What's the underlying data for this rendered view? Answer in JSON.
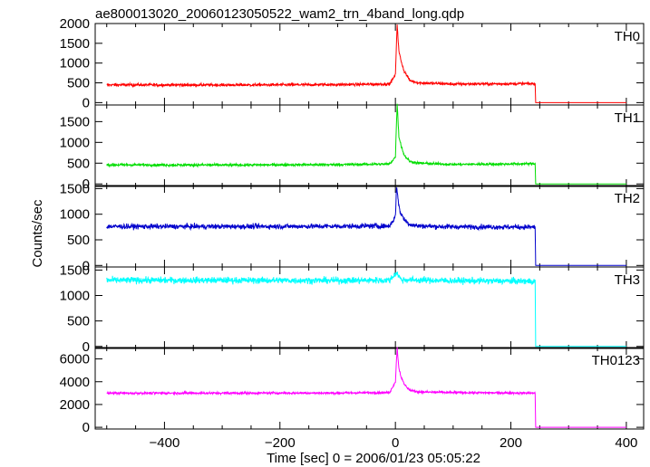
{
  "title": "ae800013020_20060123050522_wam2_trn_4band_long.qdp",
  "ylabel": "Counts/sec",
  "xlabel": "Time [sec] 0 = 2006/01/23 05:05:22",
  "chart_data": {
    "type": "line",
    "title": "ae800013020_20060123050522_wam2_trn_4band_long.qdp",
    "xlabel": "Time [sec] 0 = 2006/01/23 05:05:22",
    "ylabel": "Counts/sec",
    "xlim": [
      -520,
      430
    ],
    "x_ticks": [
      -400,
      -200,
      0,
      200,
      400
    ],
    "grid": false,
    "layout": "5 vertically stacked panels sharing the x axis",
    "event": {
      "onset_x": 0,
      "data_end_x": 242,
      "data_start_x": -500,
      "data_stop_x": 400
    },
    "panels": [
      {
        "name": "TH0",
        "color": "#ff0000",
        "ylim": [
          -60,
          2000
        ],
        "y_ticks": [
          0,
          500,
          1000,
          1500,
          2000
        ],
        "series": [
          {
            "name": "TH0",
            "baseline": 450,
            "noise": 25,
            "peak": 2000,
            "peak_x": 3,
            "secondary_peak": 1050,
            "secondary_x": 10,
            "after_end": 0,
            "points": [
              [
                -500,
                450
              ],
              [
                -300,
                445
              ],
              [
                -100,
                455
              ],
              [
                -10,
                470
              ],
              [
                0,
                700
              ],
              [
                3,
                2000
              ],
              [
                6,
                1300
              ],
              [
                10,
                1050
              ],
              [
                15,
                800
              ],
              [
                25,
                560
              ],
              [
                40,
                500
              ],
              [
                100,
                470
              ],
              [
                242,
                480
              ],
              [
                243,
                0
              ],
              [
                400,
                0
              ]
            ]
          }
        ]
      },
      {
        "name": "TH1",
        "color": "#00dd00",
        "ylim": [
          -60,
          1900
        ],
        "y_ticks": [
          0,
          500,
          1000,
          1500
        ],
        "series": [
          {
            "name": "TH1",
            "baseline": 460,
            "noise": 22,
            "peak": 1950,
            "peak_x": 3,
            "secondary_peak": 920,
            "secondary_x": 10,
            "after_end": 0,
            "points": [
              [
                -500,
                460
              ],
              [
                -300,
                455
              ],
              [
                -100,
                465
              ],
              [
                -10,
                480
              ],
              [
                0,
                650
              ],
              [
                3,
                1950
              ],
              [
                6,
                1150
              ],
              [
                10,
                920
              ],
              [
                15,
                700
              ],
              [
                25,
                540
              ],
              [
                40,
                500
              ],
              [
                100,
                470
              ],
              [
                242,
                485
              ],
              [
                243,
                0
              ],
              [
                400,
                0
              ]
            ]
          }
        ]
      },
      {
        "name": "TH2",
        "color": "#0000cc",
        "ylim": [
          -30,
          1560
        ],
        "y_ticks": [
          0,
          500,
          1000,
          1500
        ],
        "series": [
          {
            "name": "TH2",
            "baseline": 760,
            "noise": 35,
            "peak": 1560,
            "peak_x": 2,
            "secondary_peak": 1050,
            "secondary_x": 8,
            "after_end": 0,
            "points": [
              [
                -500,
                760
              ],
              [
                -300,
                760
              ],
              [
                -100,
                765
              ],
              [
                -10,
                770
              ],
              [
                0,
                950
              ],
              [
                2,
                1560
              ],
              [
                5,
                1250
              ],
              [
                8,
                1050
              ],
              [
                15,
                900
              ],
              [
                25,
                800
              ],
              [
                40,
                770
              ],
              [
                100,
                755
              ],
              [
                242,
                750
              ],
              [
                243,
                0
              ],
              [
                400,
                0
              ]
            ]
          }
        ]
      },
      {
        "name": "TH3",
        "color": "#00ffff",
        "ylim": [
          -40,
          1560
        ],
        "y_ticks": [
          0,
          500,
          1000,
          1500
        ],
        "series": [
          {
            "name": "TH3",
            "baseline": 1300,
            "noise": 45,
            "peak": 1450,
            "peak_x": 2,
            "after_end": 0,
            "points": [
              [
                -500,
                1300
              ],
              [
                -300,
                1300
              ],
              [
                -100,
                1295
              ],
              [
                -10,
                1300
              ],
              [
                2,
                1450
              ],
              [
                10,
                1310
              ],
              [
                100,
                1290
              ],
              [
                242,
                1280
              ],
              [
                243,
                0
              ],
              [
                400,
                0
              ]
            ]
          }
        ]
      },
      {
        "name": "TH0123",
        "color": "#ff00ff",
        "ylim": [
          -150,
          7000
        ],
        "y_ticks": [
          0,
          2000,
          4000,
          6000
        ],
        "series": [
          {
            "name": "TH0123",
            "baseline": 3000,
            "noise": 70,
            "peak": 7000,
            "peak_x": 3,
            "secondary_peak": 4400,
            "secondary_x": 10,
            "after_end": 0,
            "points": [
              [
                -500,
                3000
              ],
              [
                -300,
                3000
              ],
              [
                -100,
                3010
              ],
              [
                -10,
                3050
              ],
              [
                0,
                4000
              ],
              [
                3,
                7000
              ],
              [
                6,
                5200
              ],
              [
                10,
                4400
              ],
              [
                15,
                3800
              ],
              [
                25,
                3250
              ],
              [
                40,
                3100
              ],
              [
                100,
                3050
              ],
              [
                242,
                3000
              ],
              [
                243,
                0
              ],
              [
                400,
                0
              ]
            ]
          }
        ]
      }
    ]
  }
}
